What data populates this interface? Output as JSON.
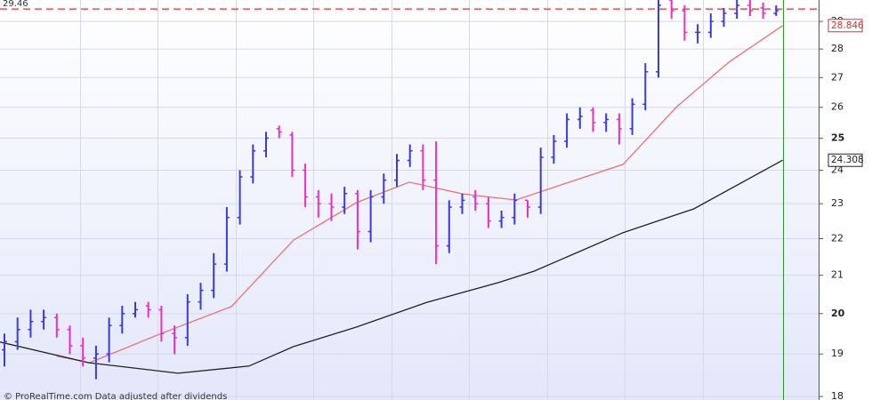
{
  "chart_data": {
    "type": "ohlc",
    "log": true,
    "ylim": [
      17.92,
      29.8
    ],
    "yticks": [
      18,
      19,
      20,
      21,
      22,
      23,
      24,
      25,
      26,
      27,
      28,
      29
    ],
    "bold_ticks": [
      20,
      25
    ],
    "grid": true,
    "up_color": "#3b3bdc",
    "down_color": "#ee2fbd",
    "reference_line": {
      "value": 29.46,
      "color": "#e03030"
    },
    "footer": "© ProRealTime.com  Data adjusted after dividends",
    "open": [
      19.1,
      19.3,
      19.6,
      19.8,
      19.9,
      19.6,
      19.2,
      18.9,
      19.0,
      19.7,
      20.0,
      20.2,
      20.1,
      19.5,
      19.4,
      20.3,
      20.6,
      21.3,
      22.6,
      23.8,
      24.6,
      25.3,
      25.1,
      24.0,
      23.2,
      23.0,
      22.9,
      23.3,
      22.2,
      23.2,
      23.7,
      24.3,
      24.6,
      23.7,
      21.8,
      22.9,
      23.2,
      23.0,
      22.5,
      22.6,
      23.1,
      22.9,
      24.4,
      24.9,
      25.6,
      25.9,
      25.5,
      25.6,
      25.3,
      26.1,
      27.2,
      29.8,
      29.4,
      28.6,
      28.6,
      29.0,
      29.3,
      29.6,
      29.5,
      29.3
    ],
    "high": [
      19.5,
      19.9,
      20.1,
      20.1,
      20.0,
      19.7,
      19.4,
      19.2,
      19.9,
      20.2,
      20.3,
      20.3,
      20.2,
      19.7,
      20.5,
      20.8,
      21.6,
      22.9,
      24.0,
      24.8,
      25.2,
      25.4,
      25.2,
      24.2,
      23.4,
      23.3,
      23.5,
      23.4,
      23.4,
      23.9,
      24.5,
      24.8,
      24.8,
      24.9,
      23.1,
      23.3,
      23.4,
      23.2,
      22.8,
      23.3,
      23.1,
      24.7,
      25.1,
      25.8,
      26.0,
      26.0,
      25.8,
      25.8,
      26.3,
      27.5,
      29.8,
      29.8,
      29.6,
      28.9,
      29.3,
      29.5,
      29.8,
      29.8,
      29.7,
      29.6
    ],
    "low": [
      18.7,
      19.1,
      19.4,
      19.6,
      19.4,
      19.0,
      18.7,
      18.4,
      18.8,
      19.5,
      19.9,
      19.9,
      19.3,
      19.0,
      19.2,
      20.1,
      20.4,
      21.1,
      22.4,
      23.6,
      24.4,
      25.0,
      23.8,
      22.9,
      22.6,
      22.5,
      22.7,
      21.7,
      21.9,
      23.0,
      23.5,
      24.1,
      23.4,
      21.3,
      21.6,
      22.7,
      22.8,
      22.3,
      22.3,
      22.4,
      22.6,
      22.7,
      24.2,
      24.7,
      25.3,
      25.2,
      25.2,
      24.8,
      25.1,
      25.9,
      27.0,
      29.1,
      28.3,
      28.2,
      28.4,
      28.8,
      29.1,
      29.2,
      29.1,
      29.2
    ],
    "close": [
      19.3,
      19.6,
      19.8,
      19.9,
      19.6,
      19.2,
      18.9,
      19.0,
      19.7,
      20.0,
      20.1,
      20.1,
      19.5,
      19.4,
      20.3,
      20.6,
      21.3,
      22.6,
      23.8,
      24.6,
      25.0,
      25.2,
      24.0,
      23.2,
      23.0,
      22.9,
      23.3,
      22.2,
      23.2,
      23.7,
      24.3,
      24.6,
      23.7,
      21.8,
      22.9,
      23.1,
      23.0,
      22.5,
      22.6,
      23.1,
      22.9,
      24.4,
      24.9,
      25.6,
      25.7,
      25.5,
      25.6,
      25.3,
      26.1,
      27.2,
      29.6,
      29.4,
      28.6,
      28.6,
      29.0,
      29.3,
      29.6,
      29.4,
      29.3,
      29.4
    ],
    "lines": [
      {
        "color": "#f07070",
        "label_border": "#e03030",
        "x": [
          4.0,
          6.5,
          11.9,
          17.35,
          22.1,
          26.9,
          30.95,
          35.03,
          39.1,
          43.2,
          47.3,
          51.4,
          55.4,
          59.5
        ],
        "values": [
          18.95,
          18.79,
          19.49,
          20.18,
          21.96,
          23.03,
          23.64,
          23.29,
          23.11,
          23.64,
          24.18,
          26.02,
          27.54,
          28.846
        ]
      },
      {
        "color": "#222222",
        "label_border": "#222222",
        "x": [
          -0.34,
          6.46,
          13.27,
          18.7,
          22.1,
          26.9,
          32.3,
          37.8,
          40.5,
          47.3,
          52.7,
          59.5
        ],
        "values": [
          19.29,
          18.79,
          18.54,
          18.71,
          19.18,
          19.66,
          20.29,
          20.81,
          21.11,
          22.17,
          22.85,
          24.308
        ]
      }
    ]
  }
}
